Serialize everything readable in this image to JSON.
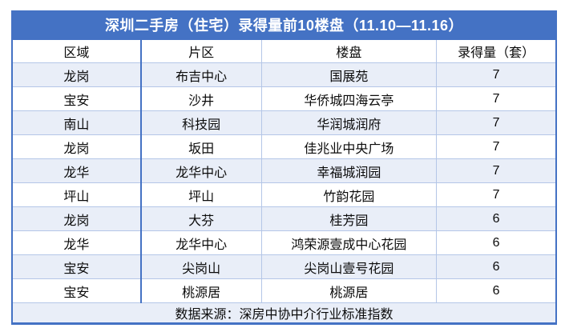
{
  "colors": {
    "accent_blue": "#4472C4",
    "row_alt_bg": "#E9EEF8",
    "grid_line": "#B4C6E7",
    "title_text": "#FFFFFF",
    "cell_text": "#0B0B0B"
  },
  "chart_data": {
    "type": "table",
    "title": "深圳二手房（住宅）录得量前10楼盘（11.10—11.16）",
    "columns": [
      "区域",
      "片区",
      "楼盘",
      "录得量（套）"
    ],
    "rows": [
      [
        "龙岗",
        "布吉中心",
        "国展苑",
        "7"
      ],
      [
        "宝安",
        "沙井",
        "华侨城四海云亭",
        "7"
      ],
      [
        "南山",
        "科技园",
        "华润城润府",
        "7"
      ],
      [
        "龙岗",
        "坂田",
        "佳兆业中央广场",
        "7"
      ],
      [
        "龙华",
        "龙华中心",
        "幸福城润园",
        "7"
      ],
      [
        "坪山",
        "坪山",
        "竹韵花园",
        "7"
      ],
      [
        "龙岗",
        "大芬",
        "桂芳园",
        "6"
      ],
      [
        "龙华",
        "龙华中心",
        "鸿荣源壹成中心花园",
        "6"
      ],
      [
        "宝安",
        "尖岗山",
        "尖岗山壹号花园",
        "6"
      ],
      [
        "宝安",
        "桃源居",
        "桃源居",
        "6"
      ]
    ],
    "recorded_values": [
      7,
      7,
      7,
      7,
      7,
      7,
      6,
      6,
      6,
      6
    ],
    "source": "数据来源：深房中协中介行业标准指数",
    "layout": {
      "alternating_row_shading": true,
      "header_row": true,
      "footer_source_row": true
    }
  }
}
